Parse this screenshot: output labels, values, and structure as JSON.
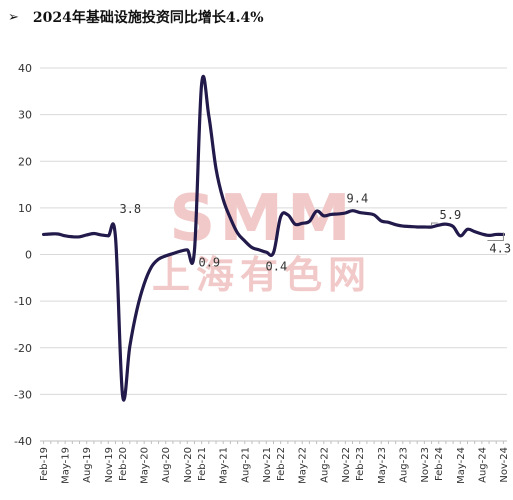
{
  "header": {
    "bullet_icon": "arrowhead-bullet-icon",
    "bullet_glyph": "➢",
    "title": "2024年基础设施投资同比增长4.4%"
  },
  "watermark": {
    "brand": "SMM",
    "sub": "上海有色网",
    "color": "#f2c9c9"
  },
  "chart_data": {
    "type": "line",
    "title": "2024年基础设施投资同比增长4.4%",
    "xlabel": "",
    "ylabel": "",
    "ylim": [
      -40,
      40
    ],
    "yticks": [
      -40,
      -30,
      -20,
      -10,
      0,
      10,
      20,
      30,
      40
    ],
    "grid": "horizontal",
    "line_color": "#211a4a",
    "x_tick_labels": [
      "Feb-19",
      "May-19",
      "Aug-19",
      "Nov-19",
      "Feb-20",
      "May-20",
      "Aug-20",
      "Nov-20",
      "Feb-21",
      "May-21",
      "Aug-21",
      "Nov-21",
      "Feb-22",
      "May-22",
      "Aug-22",
      "Nov-22",
      "Feb-23",
      "May-23",
      "Aug-23",
      "Nov-23",
      "Feb-24",
      "May-24",
      "Aug-24",
      "Nov-24"
    ],
    "x": [
      "Feb-19",
      "Mar-19",
      "Apr-19",
      "May-19",
      "Jun-19",
      "Jul-19",
      "Aug-19",
      "Sep-19",
      "Oct-19",
      "Nov-19",
      "Dec-19",
      "Feb-20",
      "Mar-20",
      "Apr-20",
      "May-20",
      "Jun-20",
      "Jul-20",
      "Aug-20",
      "Sep-20",
      "Oct-20",
      "Nov-20",
      "Dec-20",
      "Feb-21",
      "Mar-21",
      "Apr-21",
      "May-21",
      "Jun-21",
      "Jul-21",
      "Aug-21",
      "Sep-21",
      "Oct-21",
      "Nov-21",
      "Dec-21",
      "Feb-22",
      "Mar-22",
      "Apr-22",
      "May-22",
      "Jun-22",
      "Jul-22",
      "Aug-22",
      "Sep-22",
      "Oct-22",
      "Nov-22",
      "Dec-22",
      "Feb-23",
      "Mar-23",
      "Apr-23",
      "May-23",
      "Jun-23",
      "Jul-23",
      "Aug-23",
      "Sep-23",
      "Oct-23",
      "Nov-23",
      "Dec-23",
      "Feb-24",
      "Mar-24",
      "Apr-24",
      "May-24",
      "Jun-24",
      "Jul-24",
      "Aug-24",
      "Sep-24",
      "Oct-24",
      "Nov-24"
    ],
    "series": [
      {
        "values": [
          4.3,
          4.4,
          4.4,
          4.0,
          3.8,
          3.8,
          4.2,
          4.5,
          4.2,
          4.0,
          3.8,
          -30.3,
          -19.7,
          -11.8,
          -6.3,
          -2.7,
          -1.0,
          -0.3,
          0.2,
          0.7,
          1.0,
          0.9,
          36.6,
          29.7,
          18.4,
          11.8,
          7.8,
          4.6,
          2.9,
          1.5,
          1.0,
          0.5,
          0.4,
          8.1,
          8.5,
          6.5,
          6.7,
          7.1,
          9.3,
          8.3,
          8.6,
          8.7,
          8.9,
          9.4,
          9.0,
          8.8,
          8.5,
          7.2,
          6.9,
          6.4,
          6.1,
          6.0,
          5.9,
          5.9,
          5.9,
          6.3,
          6.5,
          6.0,
          4.0,
          5.4,
          4.9,
          4.4,
          4.1,
          4.3,
          4.3
        ]
      }
    ],
    "data_labels": [
      {
        "x": "Dec-19",
        "value": 3.8,
        "text": "3.8"
      },
      {
        "x": "Dec-20",
        "value": 0.9,
        "text": "0.9"
      },
      {
        "x": "Dec-21",
        "value": 0.4,
        "text": "0.4"
      },
      {
        "x": "Dec-22",
        "value": 9.4,
        "text": "9.4"
      },
      {
        "x": "Dec-23",
        "value": 5.9,
        "text": "5.9"
      },
      {
        "x": "Nov-24",
        "value": 4.3,
        "text": "4.3"
      }
    ]
  }
}
